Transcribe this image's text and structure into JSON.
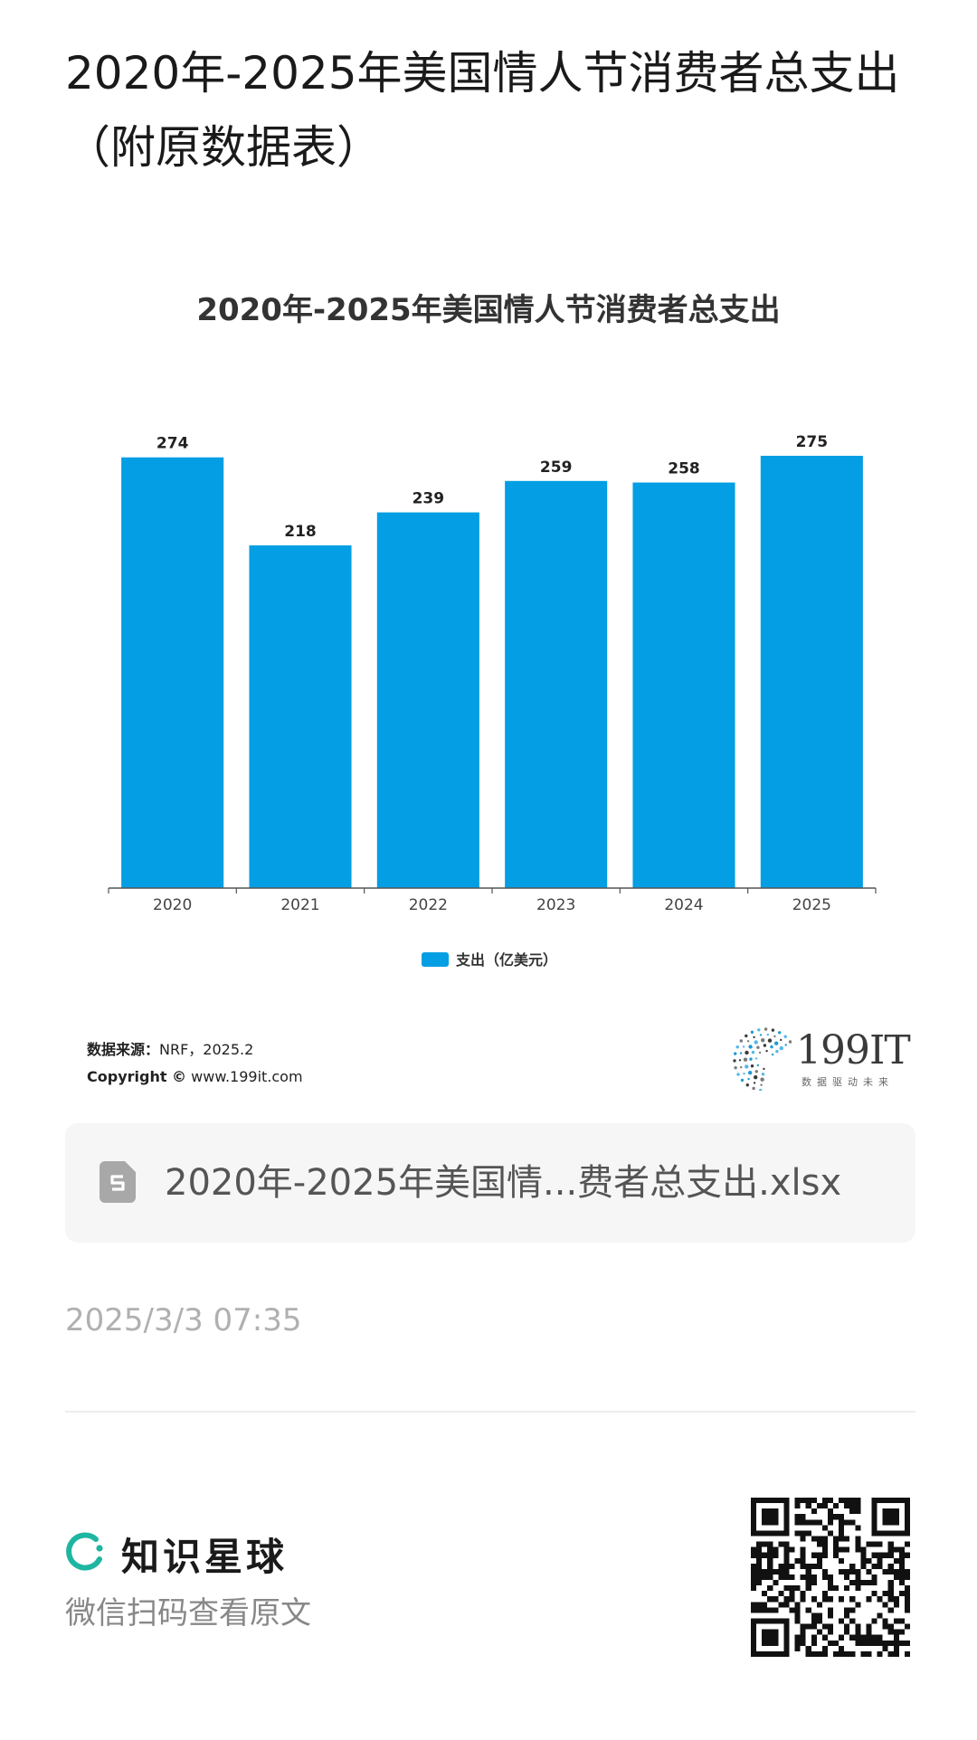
{
  "page": {
    "title": "2020年-2025年美国情人节消费者总支出（附原数据表）"
  },
  "chart_data": {
    "type": "bar",
    "title": "2020年-2025年美国情人节消费者总支出",
    "categories": [
      "2020",
      "2021",
      "2022",
      "2023",
      "2024",
      "2025"
    ],
    "series": [
      {
        "name": "支出（亿美元）",
        "values": [
          274,
          218,
          239,
          259,
          258,
          275
        ],
        "color": "#039ee3"
      }
    ],
    "ylim": [
      0,
      275
    ],
    "grid": false,
    "legend": "bottom-center",
    "xlabel": "",
    "ylabel": ""
  },
  "source": {
    "label": "数据来源：",
    "value": "NRF，2025.2",
    "copyright_label": "Copyright ©",
    "copyright_value": "www.199it.com"
  },
  "logo": {
    "name": "199IT",
    "tagline": "数据驱动未来"
  },
  "attachment": {
    "file_name": "2020年-2025年美国情...费者总支出.xlsx",
    "icon": "spreadsheet-file-icon"
  },
  "timestamp": "2025/3/3 07:35",
  "footer": {
    "brand_name": "知识星球",
    "brand_icon": "planet-ring-icon",
    "scan_prompt": "微信扫码查看原文",
    "brand_color": "#1fb6a1"
  }
}
